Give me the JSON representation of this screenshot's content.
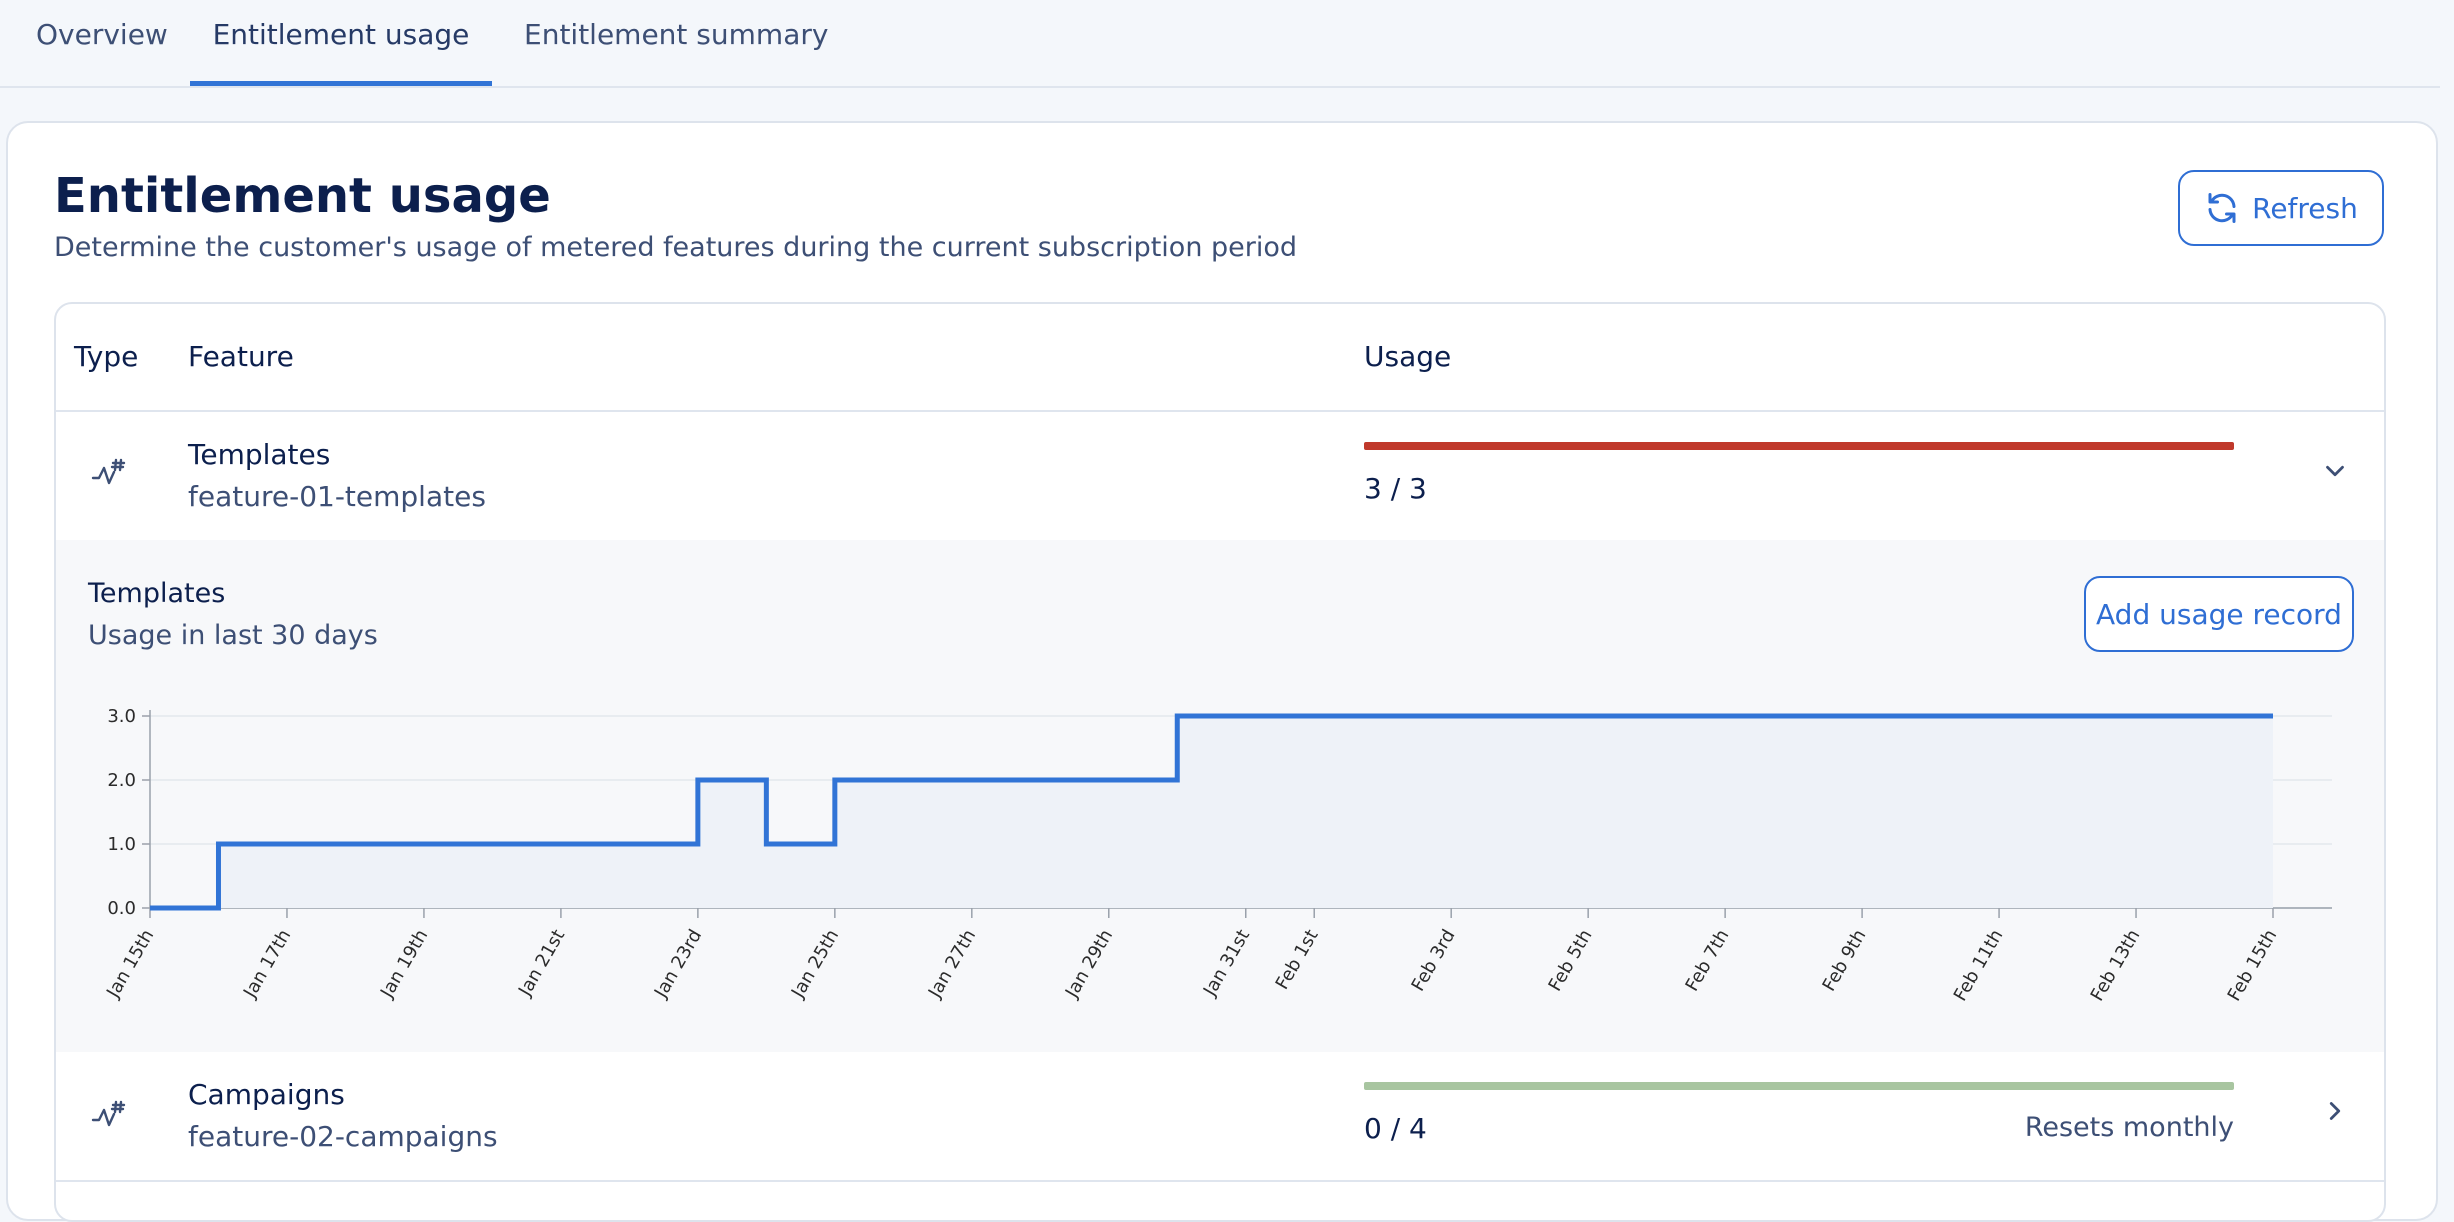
{
  "tabs": [
    {
      "label": "Overview"
    },
    {
      "label": "Entitlement usage"
    },
    {
      "label": "Entitlement summary"
    }
  ],
  "page": {
    "title": "Entitlement usage",
    "subtitle": "Determine the customer's usage of metered features during the current subscription period",
    "refresh_label": "Refresh"
  },
  "table": {
    "headers": {
      "type": "Type",
      "feature": "Feature",
      "usage": "Usage"
    },
    "rows": [
      {
        "name": "Templates",
        "id": "feature-01-templates",
        "usage_text": "3 / 3",
        "used": 3,
        "limit": 3,
        "bar_color": "#c0392b",
        "expanded": true,
        "chevron_icon": "chevron-down-icon"
      },
      {
        "name": "Campaigns",
        "id": "feature-02-campaigns",
        "usage_text": "0 / 4",
        "used": 0,
        "limit": 4,
        "bar_color": "#a8c5a0",
        "resets": "Resets monthly",
        "expanded": false,
        "chevron_icon": "chevron-right-icon"
      }
    ]
  },
  "expanded_panel": {
    "title": "Templates",
    "subtitle": "Usage in last 30 days",
    "add_label": "Add usage record"
  },
  "chart_data": {
    "type": "line",
    "step": true,
    "title": "",
    "xlabel": "",
    "ylabel": "",
    "ylim": [
      0,
      3
    ],
    "yticks": [
      "0.0",
      "1.0",
      "2.0",
      "3.0"
    ],
    "xlim": [
      "2024-01-15",
      "2024-02-15"
    ],
    "xticks": [
      {
        "date": "2024-01-15",
        "label": "Jan 15th"
      },
      {
        "date": "2024-01-17",
        "label": "Jan 17th"
      },
      {
        "date": "2024-01-19",
        "label": "Jan 19th"
      },
      {
        "date": "2024-01-21",
        "label": "Jan 21st"
      },
      {
        "date": "2024-01-23",
        "label": "Jan 23rd"
      },
      {
        "date": "2024-01-25",
        "label": "Jan 25th"
      },
      {
        "date": "2024-01-27",
        "label": "Jan 27th"
      },
      {
        "date": "2024-01-29",
        "label": "Jan 29th"
      },
      {
        "date": "2024-01-31",
        "label": "Jan 31st"
      },
      {
        "date": "2024-02-01",
        "label": "Feb 1st"
      },
      {
        "date": "2024-02-03",
        "label": "Feb 3rd"
      },
      {
        "date": "2024-02-05",
        "label": "Feb 5th"
      },
      {
        "date": "2024-02-07",
        "label": "Feb 7th"
      },
      {
        "date": "2024-02-09",
        "label": "Feb 9th"
      },
      {
        "date": "2024-02-11",
        "label": "Feb 11th"
      },
      {
        "date": "2024-02-13",
        "label": "Feb 13th"
      },
      {
        "date": "2024-02-15",
        "label": "Feb 15th"
      }
    ],
    "series": [
      {
        "color": "#3174d6",
        "points": [
          {
            "x": "2024-01-15",
            "y": 0
          },
          {
            "x": "2024-01-16",
            "y": 1
          },
          {
            "x": "2024-01-23",
            "y": 2
          },
          {
            "x": "2024-01-24",
            "y": 1
          },
          {
            "x": "2024-01-25",
            "y": 2
          },
          {
            "x": "2024-01-30",
            "y": 3
          },
          {
            "x": "2024-02-15",
            "y": 3
          }
        ]
      }
    ],
    "grid": true
  }
}
